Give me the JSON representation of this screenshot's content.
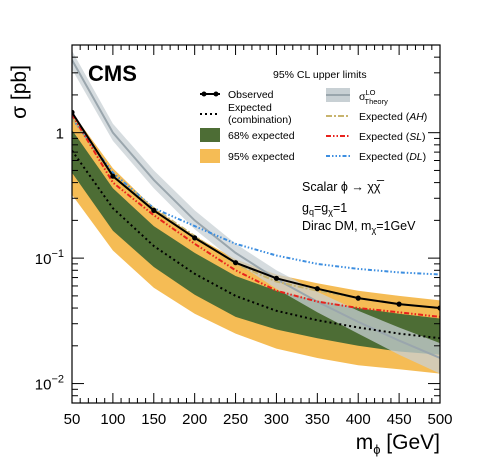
{
  "chart_data": {
    "type": "line",
    "experiment": "CMS",
    "header": "95% CL upper limits",
    "xlabel_main": "m",
    "xlabel_sub": "ϕ",
    "xlabel_unit": " [GeV]",
    "ylabel": "σ [pb]",
    "xlim": [
      50,
      500
    ],
    "ylim": [
      0.007,
      5
    ],
    "yscale": "log",
    "grid": false,
    "legend_placement": "top-right",
    "x_ticks": [
      "50",
      "100",
      "150",
      "200",
      "250",
      "300",
      "350",
      "400",
      "450",
      "500"
    ],
    "x_tick_values": [
      50,
      100,
      150,
      200,
      250,
      300,
      350,
      400,
      450,
      500
    ],
    "y_ticks": [
      {
        "value": 1,
        "base": "1",
        "exp": ""
      },
      {
        "value": 0.1,
        "base": "10",
        "exp": "−1"
      },
      {
        "value": 0.01,
        "base": "10",
        "exp": "−2"
      }
    ],
    "x": [
      50,
      100,
      150,
      200,
      250,
      300,
      350,
      400,
      450,
      500
    ],
    "series": [
      {
        "name": "Observed",
        "color": "#000000",
        "values": [
          1.45,
          0.45,
          0.24,
          0.145,
          0.092,
          0.069,
          0.057,
          0.048,
          0.043,
          0.04
        ]
      },
      {
        "name": "Expected (combination)",
        "color": "#000000",
        "values": [
          0.72,
          0.25,
          0.125,
          0.075,
          0.05,
          0.038,
          0.032,
          0.028,
          0.025,
          0.023
        ]
      },
      {
        "name": "Expected (AH)",
        "color": "#c8b46e",
        "values": [
          1.3,
          0.45,
          0.25,
          0.15,
          0.09,
          0.065,
          0.055,
          0.048,
          0.043,
          0.04
        ]
      },
      {
        "name": "Expected (SL)",
        "color": "#e8221c",
        "values": [
          1.4,
          0.4,
          0.22,
          0.13,
          0.08,
          0.055,
          0.045,
          0.04,
          0.037,
          0.034
        ]
      },
      {
        "name": "Expected (DL)",
        "color": "#3c8ee0",
        "values": [
          1.3,
          0.48,
          0.25,
          0.18,
          0.13,
          0.105,
          0.09,
          0.082,
          0.077,
          0.074
        ]
      }
    ],
    "bands": [
      {
        "name": "68% expected",
        "color": "#4d6d35",
        "low": [
          0.48,
          0.165,
          0.085,
          0.051,
          0.034,
          0.027,
          0.023,
          0.02,
          0.018,
          0.017
        ],
        "high": [
          1.05,
          0.36,
          0.18,
          0.11,
          0.072,
          0.055,
          0.046,
          0.04,
          0.036,
          0.033
        ]
      },
      {
        "name": "95% expected",
        "color": "#f5bc55",
        "low": [
          0.32,
          0.115,
          0.058,
          0.036,
          0.025,
          0.019,
          0.016,
          0.014,
          0.013,
          0.012
        ],
        "high": [
          1.45,
          0.52,
          0.25,
          0.15,
          0.098,
          0.074,
          0.063,
          0.055,
          0.05,
          0.046
        ]
      }
    ],
    "theory": {
      "name_main": "σ",
      "name_sup": "LO",
      "name_sub": "Theory",
      "color": "#9aa6ad",
      "band_color": "#c8d0d4",
      "central": [
        3.8,
        1.0,
        0.42,
        0.2,
        0.11,
        0.068,
        0.045,
        0.031,
        0.022,
        0.016
      ],
      "low": [
        3.2,
        0.86,
        0.36,
        0.17,
        0.093,
        0.057,
        0.037,
        0.025,
        0.017,
        0.012
      ],
      "high": [
        4.5,
        1.18,
        0.5,
        0.24,
        0.13,
        0.08,
        0.054,
        0.038,
        0.028,
        0.021
      ]
    },
    "legend": {
      "observed": "Observed",
      "expected_1": "Expected",
      "expected_2": "(combination)",
      "band68": "68% expected",
      "band95": "95% expected",
      "exp_prefix": "Expected (",
      "ah": "AH",
      "sl": "SL",
      "dl": "DL",
      "exp_suffix": ")"
    },
    "annotations": {
      "line1": "Scalar ϕ → χχ̅",
      "line2_g": "g",
      "line2_sub1": "q",
      "line2_eq": "=g",
      "line2_sub2": "χ",
      "line2_val": "=1",
      "line3_a": "Dirac DM, m",
      "line3_sub": "χ",
      "line3_b": "=1GeV"
    }
  }
}
